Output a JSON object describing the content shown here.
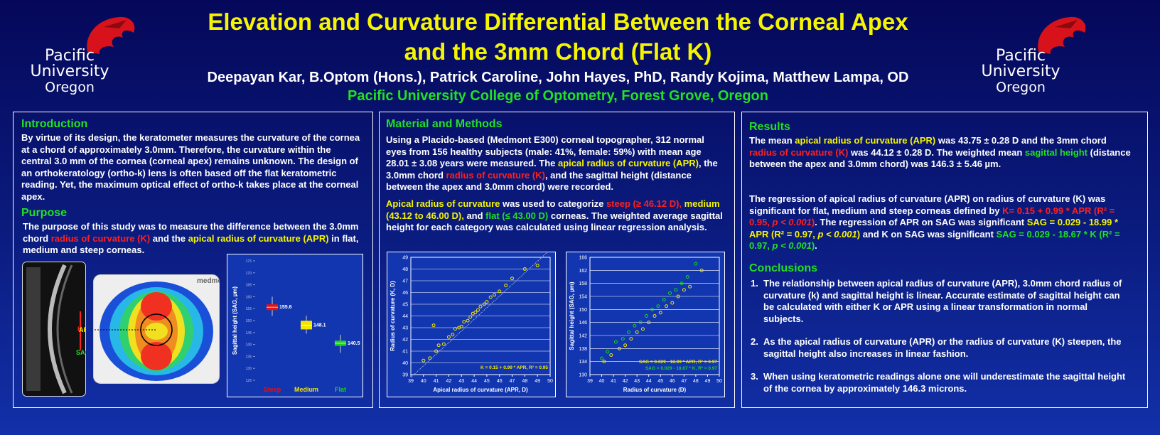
{
  "header": {
    "title": [
      "Elevation and Curvature Differential Between the Corneal Apex",
      "and the 3mm Chord (Flat K)"
    ],
    "authors": "Deepayan Kar, B.Optom (Hons.), Patrick Caroline, John Hayes, PhD, Randy Kojima, Matthew Lampa, OD",
    "affiliation": "Pacific University College of Optometry, Forest Grove, Oregon"
  },
  "logo": {
    "lines": [
      "Pacific",
      "University",
      "Oregon"
    ]
  },
  "introduction": {
    "title": "Introduction",
    "text": [
      {
        "text": "By virtue of its design, the keratometer measures the curvature of the cornea at a chord of approximately 3.0mm. Therefore, the curvature within the central 3.0 mm of the cornea (corneal apex) remains unknown. The design of an orthokeratology (ortho-k) lens is often based off the flat keratometric reading. Yet, the maximum optical effect of ortho-k takes place at the corneal apex.",
        "color": "white"
      }
    ]
  },
  "purpose": {
    "title": "Purpose",
    "text": [
      {
        "text": "The purpose of this study was to measure the difference between the 3.0mm chord ",
        "color": "white"
      },
      {
        "text": "radius of curvature (K)",
        "color": "red"
      },
      {
        "text": " and the ",
        "color": "white"
      },
      {
        "text": "apical radius of curvature (APR)",
        "color": "yellow"
      },
      {
        "text": " in flat, medium and steep corneas.",
        "color": "white"
      }
    ]
  },
  "figure": {
    "brand": "medmont",
    "labels": [
      {
        "text": "K",
        "color": "red"
      },
      {
        "text": "APR",
        "color": "yellow"
      },
      {
        "text": "SAG",
        "color": "green"
      }
    ]
  },
  "methods": {
    "title": "Material and Methods",
    "p1": [
      {
        "text": "Using a Placido-based (Medmont E300) corneal topographer, 312 normal eyes from 156 healthy subjects (male: 41%, female: 59%) with mean age 28.01 ± 3.08 years were measured.  The ",
        "color": "white"
      },
      {
        "text": "apical radius of curvature (APR)",
        "color": "yellow"
      },
      {
        "text": ", the 3.0mm chord ",
        "color": "white"
      },
      {
        "text": "radius of curvature (K)",
        "color": "red"
      },
      {
        "text": ", and the sagittal height (distance between the apex and 3.0mm chord) were recorded.",
        "color": "white"
      }
    ],
    "p2": [
      {
        "text": "Apical radius of curvature",
        "color": "yellow"
      },
      {
        "text": " was used to categorize ",
        "color": "white"
      },
      {
        "text": "steep (≥ 46.12 D),",
        "color": "red"
      },
      {
        "text": " medium (43.12 to 46.00 D),",
        "color": "yellow"
      },
      {
        "text": " and ",
        "color": "white"
      },
      {
        "text": "flat (≤ 43.00 D)",
        "color": "green"
      },
      {
        "text": " corneas. The weighted average sagittal height for each category was calculated using linear regression analysis.",
        "color": "white"
      }
    ]
  },
  "results": {
    "title": "Results",
    "p1": [
      {
        "text": "The mean ",
        "color": "white"
      },
      {
        "text": "apical radius of curvature (APR)",
        "color": "yellow"
      },
      {
        "text": " was 43.75 ± 0.28 D and the 3mm chord ",
        "color": "white"
      },
      {
        "text": "radius of curvature (K)",
        "color": "red"
      },
      {
        "text": " was 44.12 ± 0.28 D. The weighted mean ",
        "color": "white"
      },
      {
        "text": "sagittal height",
        "color": "green"
      },
      {
        "text": " (distance between the apex and 3.0mm chord) was 146.3 ± 5.46 µm.",
        "color": "white"
      }
    ],
    "p2": [
      {
        "text": "The regression of apical radius of curvature (APR) on radius of curvature (K) was significant for flat, medium and steep corneas defined by ",
        "color": "white"
      },
      {
        "text": "K= 0.15 + 0.99 * APR (R² = 0.95, ",
        "color": "red"
      },
      {
        "text": "p < 0.001",
        "color": "red",
        "italic": true
      },
      {
        "text": ")",
        "color": "red"
      },
      {
        "text": ". The regression of APR on SAG was significant ",
        "color": "white"
      },
      {
        "text": "SAG = 0.029 - 18.99 * APR (R² = 0.97, ",
        "color": "yellow"
      },
      {
        "text": "p < 0.001",
        "color": "yellow",
        "italic": true
      },
      {
        "text": ")",
        "color": "yellow"
      },
      {
        "text": " and K on SAG was significant ",
        "color": "white"
      },
      {
        "text": "SAG = 0.029 - 18.67 * K (R² = 0.97, ",
        "color": "green"
      },
      {
        "text": "p < 0.001",
        "color": "green",
        "italic": true
      },
      {
        "text": ")",
        "color": "green"
      },
      {
        "text": ".",
        "color": "white"
      }
    ]
  },
  "conclusions": {
    "title": "Conclusions",
    "items": [
      {
        "num": "1.",
        "text": "The relationship between apical radius of curvature (APR), 3.0mm chord radius of curvature (k) and sagittal height is linear. Accurate estimate of sagittal height can be calculated with either K or APR using a linear transformation in normal subjects."
      },
      {
        "num": "2.",
        "text": "As the apical radius of curvature (APR) or the radius of curvature (K) steepen, the sagittal height also increases in linear fashion."
      },
      {
        "num": "3.",
        "text": "When using keratometric readings alone one will underestimate the sagittal height of the cornea by approximately 146.3 microns."
      }
    ]
  },
  "chart_data": [
    {
      "type": "box",
      "ylabel": "Sagittal height (SAG, µm)",
      "ylim": [
        125,
        175
      ],
      "yticks": [
        125,
        130,
        135,
        140,
        145,
        150,
        155,
        160,
        165,
        170,
        175
      ],
      "series": [
        {
          "name": "Steep",
          "color": "#e81010",
          "low": 152,
          "q1": 154.4,
          "median": 155.6,
          "q3": 156.8,
          "high": 160
        },
        {
          "name": "Medium",
          "color": "#f5e600",
          "low": 144.5,
          "q1": 146.3,
          "median": 148.1,
          "q3": 149.9,
          "high": 152
        },
        {
          "name": "Flat",
          "color": "#19d419",
          "low": 136.5,
          "q1": 139.4,
          "median": 140.5,
          "q3": 141.6,
          "high": 144
        }
      ]
    },
    {
      "type": "scatter",
      "xlabel": "Apical radius of curvature (APR, D)",
      "ylabel": "Radius of curvature (K, D)",
      "xlim": [
        39,
        50
      ],
      "xticks": [
        39,
        40,
        41,
        42,
        43,
        44,
        45,
        46,
        47,
        48,
        49,
        50
      ],
      "ylim": [
        39,
        49
      ],
      "yticks": [
        39,
        40,
        41,
        42,
        43,
        44,
        45,
        46,
        47,
        48,
        49
      ],
      "annotation": "K = 0.15 + 0.99 * APR, R² = 0.95",
      "trend": {
        "intercept": 0.15,
        "slope": 0.99
      },
      "series": [
        {
          "color": "#f5e600",
          "x": [
            40.0,
            40.5,
            41.0,
            41.2,
            41.6,
            42.0,
            42.3,
            42.5,
            42.8,
            43.0,
            43.2,
            43.5,
            43.7,
            43.9,
            44.1,
            44.3,
            44.5,
            44.8,
            45.0,
            45.3,
            45.6,
            46.0,
            46.5,
            47.0,
            48.0,
            49.0,
            40.8
          ],
          "y": [
            40.2,
            40.4,
            41.0,
            41.5,
            41.6,
            42.2,
            42.4,
            42.9,
            43.0,
            43.1,
            43.5,
            43.6,
            43.9,
            44.2,
            44.3,
            44.5,
            44.8,
            45.0,
            45.2,
            45.6,
            45.8,
            46.1,
            46.6,
            47.2,
            48.0,
            48.3,
            43.2
          ]
        }
      ]
    },
    {
      "type": "scatter",
      "xlabel": "Radius of curvature (D)",
      "ylabel": "Sagittal height (SAG, µm)",
      "xlim": [
        39,
        50
      ],
      "xticks": [
        39,
        40,
        41,
        42,
        43,
        44,
        45,
        46,
        47,
        48,
        49,
        50
      ],
      "ylim": [
        130,
        166
      ],
      "yticks": [
        130,
        134,
        138,
        142,
        146,
        150,
        154,
        158,
        162,
        166
      ],
      "series": [
        {
          "name": "SAG = 0.029 - 18.99 * APR, R² = 0.97",
          "color": "#f5e600",
          "x": [
            40.2,
            40.8,
            41.5,
            42.0,
            42.5,
            43.0,
            43.5,
            44.0,
            44.5,
            45.0,
            45.5,
            46.0,
            46.5,
            47.0,
            47.5,
            48.5
          ],
          "y": [
            134,
            136,
            138,
            139,
            141,
            143,
            144,
            146,
            148,
            149,
            151,
            152,
            154,
            156,
            157,
            162
          ]
        },
        {
          "name": "SAG = 0.029 - 18.67 * K, R² = 0.97",
          "color": "#19d419",
          "x": [
            40.0,
            40.5,
            41.2,
            41.8,
            42.3,
            42.8,
            43.3,
            43.8,
            44.3,
            44.8,
            45.3,
            45.8,
            46.3,
            46.8,
            47.3,
            48.0
          ],
          "y": [
            135,
            137,
            140,
            141,
            143,
            145,
            146,
            148,
            150,
            151,
            153,
            155,
            156,
            158,
            160,
            164
          ]
        }
      ]
    }
  ]
}
